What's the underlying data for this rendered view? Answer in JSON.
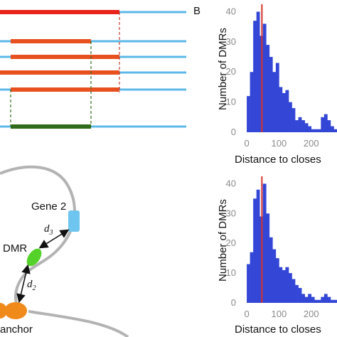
{
  "colors": {
    "red": "#e8231a",
    "orange": "#e8501f",
    "blue": "#5bb8e8",
    "green": "#2f6b1a",
    "gene_blue": "#6ec6f0",
    "dmr_green": "#55d22a",
    "anchor_orange": "#f08a1a",
    "bar_blue": "#3346d6",
    "median_red": "#d8322b",
    "chromatin_gray": "#b3b3b3"
  },
  "panel_a": {
    "gene_label": "Gene 2",
    "dmr_label": "DMR",
    "anchor_label": "anchor",
    "d3_label": "d",
    "d3_sub": "3",
    "d2_label": "d",
    "d2_sub": "2"
  },
  "panel_b": {
    "letter": "B"
  },
  "chart_data": [
    {
      "type": "bar",
      "ylabel": "Number of DMRs",
      "xlabel": "Distance to closes",
      "xlim": [
        -20,
        280
      ],
      "ylim": [
        0,
        42
      ],
      "xticks": [
        0,
        100,
        200
      ],
      "yticks": [
        0,
        10,
        20,
        30,
        40
      ],
      "bin_width": 10,
      "bin_starts": [
        0,
        10,
        20,
        30,
        40,
        50,
        60,
        70,
        80,
        90,
        100,
        110,
        120,
        130,
        140,
        150,
        160,
        170,
        180,
        190,
        200,
        210,
        220,
        230,
        240,
        250,
        260,
        270
      ],
      "values": [
        12,
        20,
        37,
        40,
        32,
        36,
        29,
        25,
        20,
        23,
        15,
        13,
        14,
        10,
        8,
        4,
        5,
        4,
        3,
        2,
        1,
        1,
        1,
        5,
        6,
        4,
        2,
        1
      ],
      "median_line": 47
    },
    {
      "type": "bar",
      "ylabel": "Number of DMRs",
      "xlabel": "Distance to closes",
      "xlim": [
        -20,
        280
      ],
      "ylim": [
        0,
        42
      ],
      "xticks": [
        0,
        100,
        200
      ],
      "yticks": [
        0,
        10,
        20,
        30,
        40
      ],
      "bin_width": 10,
      "bin_starts": [
        0,
        10,
        20,
        30,
        40,
        50,
        60,
        70,
        80,
        90,
        100,
        110,
        120,
        130,
        140,
        150,
        160,
        170,
        180,
        190,
        200,
        210,
        220,
        230,
        240,
        250,
        260,
        270
      ],
      "values": [
        13,
        17,
        35,
        38,
        29,
        40,
        30,
        22,
        18,
        15,
        12,
        11,
        12,
        10,
        8,
        6,
        5,
        3,
        2,
        3,
        2,
        1,
        1,
        2,
        3,
        2,
        1,
        1
      ],
      "median_line": 47
    }
  ]
}
